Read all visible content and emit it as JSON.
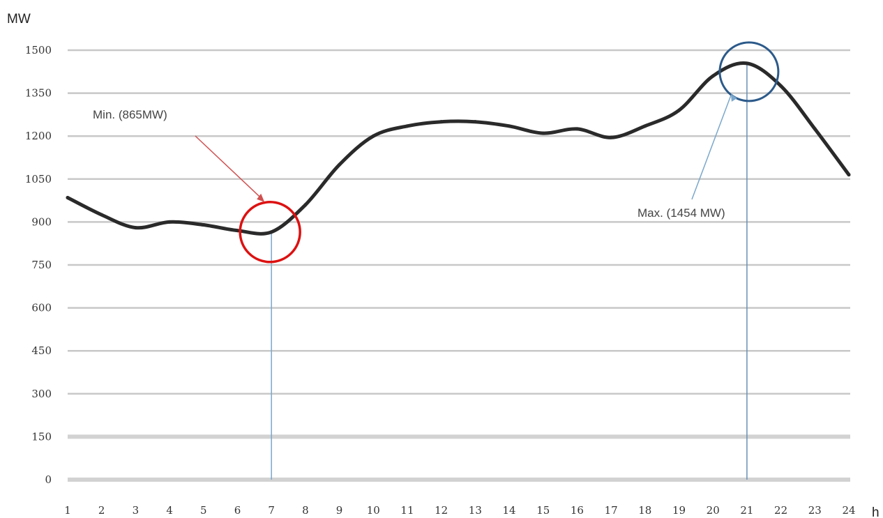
{
  "chart_data": {
    "type": "line",
    "ylabel": "MW",
    "xlabel": "h",
    "ylim": [
      0,
      1500
    ],
    "yticks": [
      0,
      150,
      300,
      450,
      600,
      750,
      900,
      1050,
      1200,
      1350,
      1500
    ],
    "x": [
      1,
      2,
      3,
      4,
      5,
      6,
      7,
      8,
      9,
      10,
      11,
      12,
      13,
      14,
      15,
      16,
      17,
      18,
      19,
      20,
      21,
      22,
      23,
      24
    ],
    "grid": true,
    "series": [
      {
        "values": [
          985,
          925,
          880,
          900,
          890,
          870,
          865,
          960,
          1100,
          1200,
          1235,
          1250,
          1250,
          1235,
          1210,
          1225,
          1195,
          1235,
          1290,
          1410,
          1454,
          1375,
          1225,
          1065
        ]
      }
    ],
    "annotations": {
      "min": {
        "label": "Min. (865MW)",
        "x": 7,
        "y": 865,
        "color": "#dd1111"
      },
      "max": {
        "label": "Max. (1454 MW)",
        "x": 21,
        "y": 1454,
        "color": "#2c5a8a"
      }
    },
    "colors": {
      "line": "#2a2a2a",
      "grid": "#c8c8c8",
      "marker_line": "#7aa7cc"
    }
  }
}
